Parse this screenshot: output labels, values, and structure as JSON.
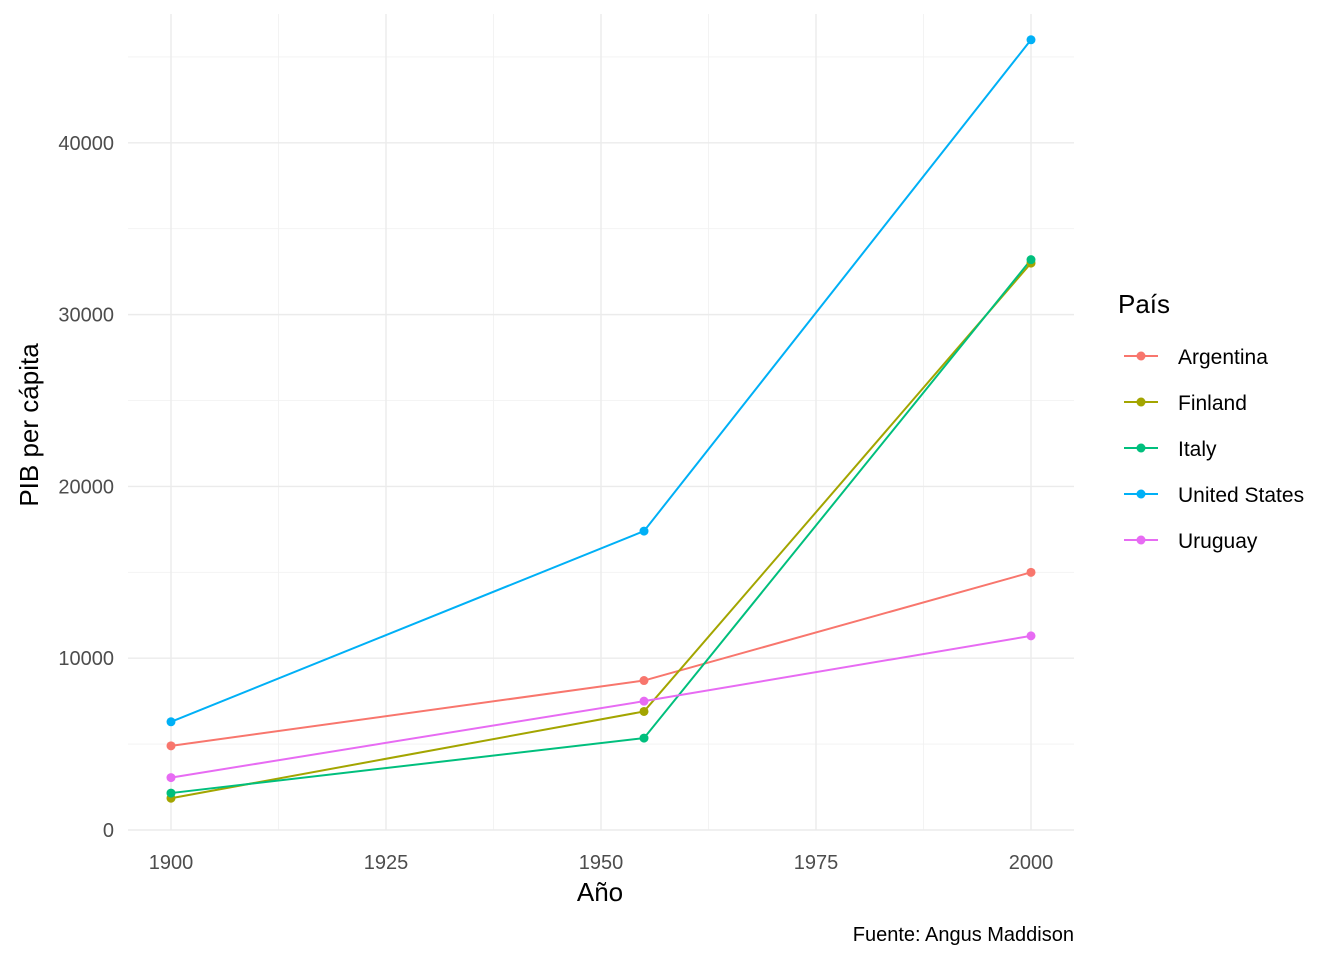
{
  "chart_data": {
    "type": "line",
    "title": "",
    "xlabel": "Año",
    "ylabel": "PIB per cápita",
    "caption": "Fuente: Angus Maddison",
    "legend_title": "País",
    "legend_position": "right",
    "grid": true,
    "xlim": [
      1895,
      2005
    ],
    "ylim": [
      0,
      47500
    ],
    "x_ticks": [
      1900,
      1925,
      1950,
      1975,
      2000
    ],
    "x_tick_labels": [
      "1900",
      "1925",
      "1950",
      "1975",
      "2000"
    ],
    "y_ticks": [
      0,
      10000,
      20000,
      30000,
      40000
    ],
    "y_tick_labels": [
      "0",
      "10000",
      "20000",
      "30000",
      "40000"
    ],
    "x": [
      1900,
      1955,
      2000
    ],
    "series": [
      {
        "name": "Argentina",
        "color": "#F8766D",
        "values": [
          4900,
          8700,
          15000
        ]
      },
      {
        "name": "Finland",
        "color": "#A3A500",
        "values": [
          1850,
          6900,
          33000
        ]
      },
      {
        "name": "Italy",
        "color": "#00BF7D",
        "values": [
          2150,
          5350,
          33200
        ]
      },
      {
        "name": "United States",
        "color": "#00B0F6",
        "values": [
          6300,
          17400,
          46000
        ]
      },
      {
        "name": "Uruguay",
        "color": "#E76BF3",
        "values": [
          3050,
          7500,
          11300
        ]
      }
    ]
  }
}
